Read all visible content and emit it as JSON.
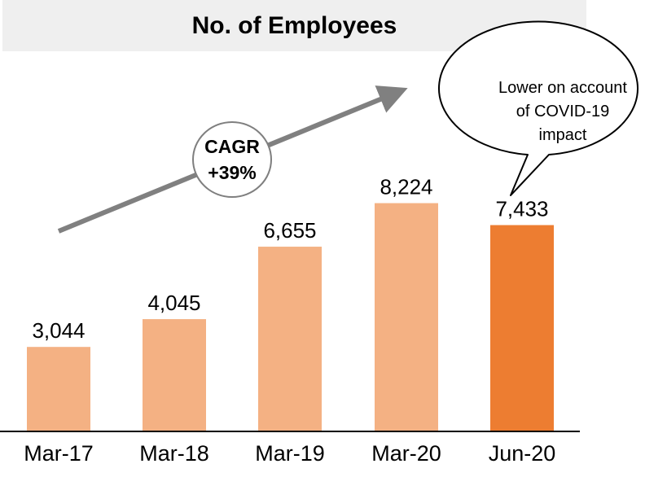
{
  "chart_data": {
    "type": "bar",
    "title": "No. of Employees",
    "categories": [
      "Mar-17",
      "Mar-18",
      "Mar-19",
      "Mar-20",
      "Jun-20"
    ],
    "values": [
      3044,
      4045,
      6655,
      8224,
      7433
    ],
    "value_labels": [
      "3,044",
      "4,045",
      "6,655",
      "8,224",
      "7,433"
    ],
    "ylim": [
      0,
      10000
    ],
    "grid": false,
    "colors": {
      "bar": "#F4B183",
      "highlight_bar": "#ED7D31",
      "arrow": "#808080",
      "axis": "#000000"
    },
    "highlight_index": 4,
    "annotations": {
      "cagr": [
        "CAGR",
        "+39%"
      ],
      "callout": [
        "Lower on account",
        "of COVID-19",
        "impact"
      ]
    }
  }
}
